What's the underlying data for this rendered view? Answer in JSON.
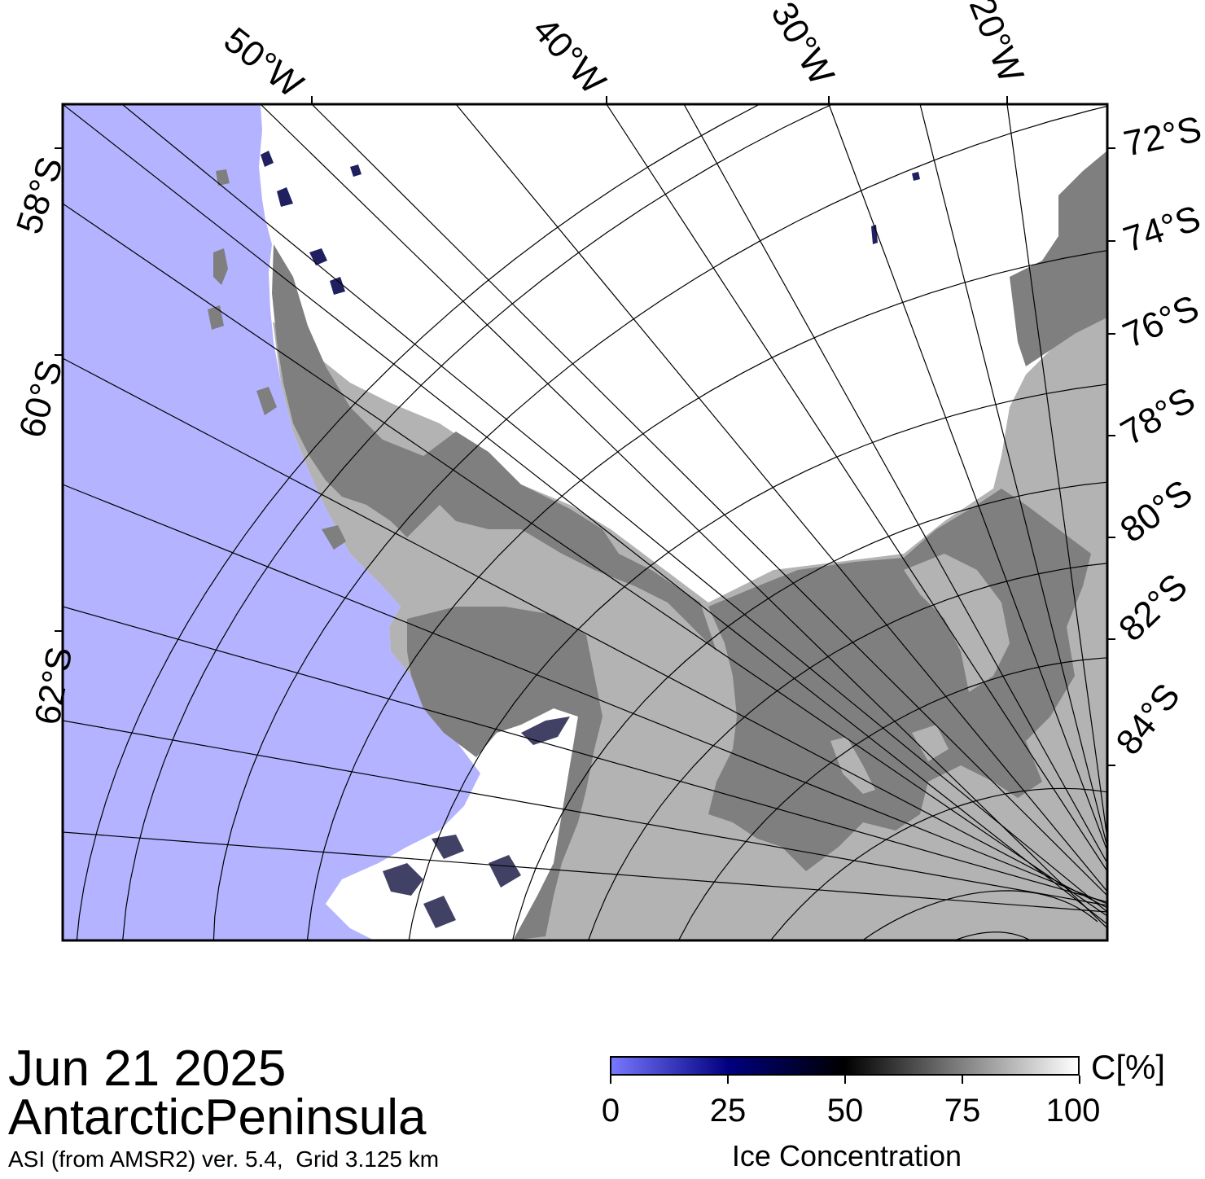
{
  "map": {
    "longitude_labels": [
      "50°W",
      "40°W",
      "30°W",
      "20°W"
    ],
    "latitude_labels_left": [
      "58°S",
      "60°S",
      "62°S"
    ],
    "latitude_labels_right": [
      "72°S",
      "74°S",
      "76°S",
      "78°S",
      "80°S",
      "82°S",
      "84°S"
    ],
    "colors": {
      "open_water": "#b3b3ff",
      "land": "#7f7f7f",
      "ice_shelf": "#b3b3b3",
      "full_ice": "#ffffff",
      "frame": "#000000"
    }
  },
  "footer": {
    "date": "Jun 21 2025",
    "region": "AntarcticPeninsula",
    "product": "ASI (from AMSR2) ver. 5.4,  Grid 3.125 km"
  },
  "colorbar": {
    "unit": "C[%]",
    "title": "Ice Concentration",
    "ticks": [
      "0",
      "25",
      "50",
      "75",
      "100"
    ],
    "colors": [
      "#7777ff",
      "#000080",
      "#000000",
      "#808080",
      "#ffffff"
    ]
  }
}
